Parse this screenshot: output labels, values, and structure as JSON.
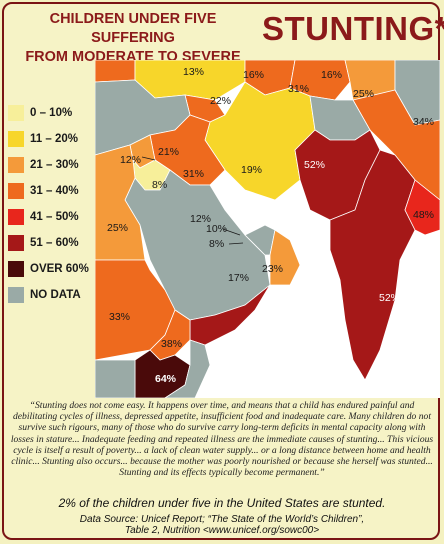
{
  "title": {
    "line1": "CHILDREN UNDER FIVE SUFFERING",
    "line2": "FROM MODERATE TO SEVERE",
    "big": "STUNTING*"
  },
  "legend": [
    {
      "label": "0 – 10%",
      "color": "#f7ef9a"
    },
    {
      "label": "11 – 20%",
      "color": "#f7d62a"
    },
    {
      "label": "21 – 30%",
      "color": "#f49a3a"
    },
    {
      "label": "31 – 40%",
      "color": "#ee6a1e"
    },
    {
      "label": "41 – 50%",
      "color": "#e8261c"
    },
    {
      "label": "51 – 60%",
      "color": "#a51818"
    },
    {
      "label": "OVER 60%",
      "color": "#4a0a0a"
    },
    {
      "label": "NO DATA",
      "color": "#9aaaa6"
    }
  ],
  "map_labels": [
    {
      "id": "turkmen-a",
      "text": "13%"
    },
    {
      "id": "uzbek",
      "text": "16%"
    },
    {
      "id": "kyrgyz",
      "text": "16%"
    },
    {
      "id": "azerbaijan",
      "text": "22%"
    },
    {
      "id": "tajik",
      "text": "31%"
    },
    {
      "id": "china-w",
      "text": "25%"
    },
    {
      "id": "nepal",
      "text": "34%"
    },
    {
      "id": "lebanon",
      "text": "12%"
    },
    {
      "id": "syria",
      "text": "21%"
    },
    {
      "id": "iraq",
      "text": "31%"
    },
    {
      "id": "iran",
      "text": "19%"
    },
    {
      "id": "pakistan",
      "text": "52%"
    },
    {
      "id": "jordan",
      "text": "8%"
    },
    {
      "id": "kuwait",
      "text": "12%"
    },
    {
      "id": "bahrain",
      "text": "10%"
    },
    {
      "id": "qatar",
      "text": "8%"
    },
    {
      "id": "bangladesh",
      "text": "48%"
    },
    {
      "id": "egypt",
      "text": "25%"
    },
    {
      "id": "oman",
      "text": "23%"
    },
    {
      "id": "uae",
      "text": "17%"
    },
    {
      "id": "india",
      "text": "52%"
    },
    {
      "id": "sudan",
      "text": "33%"
    },
    {
      "id": "yemen",
      "text": "52%"
    },
    {
      "id": "eritrea",
      "text": "38%"
    },
    {
      "id": "ethiopia",
      "text": "64%"
    }
  ],
  "quote": "“Stunting does not come easy. It happens over time, and means that a child has endured painful and debilitating cycles of illness, depressed appetite, insufficient food and inadequate care. Many children do not survive such rigours, many of those who do survive carry long-term deficits in mental capacity along with losses in stature... Inadequate feeding and repeated illness are the immediate causes of stunting... This vicious cycle is itself a result of poverty... a lack of clean water supply... or a long distance between home and health clinic... Stunting also occurs... because the mother was poorly nourished or because she herself was stunted... Stunting and its effects typically become permanent.”",
  "us_note": "2% of the children under five in the United States are stunted.",
  "source_line1": "Data Source: Unicef Report; “The State of the World’s Children”,",
  "source_line2": "Table 2, Nutrition <www.unicef.org/sowc00>"
}
